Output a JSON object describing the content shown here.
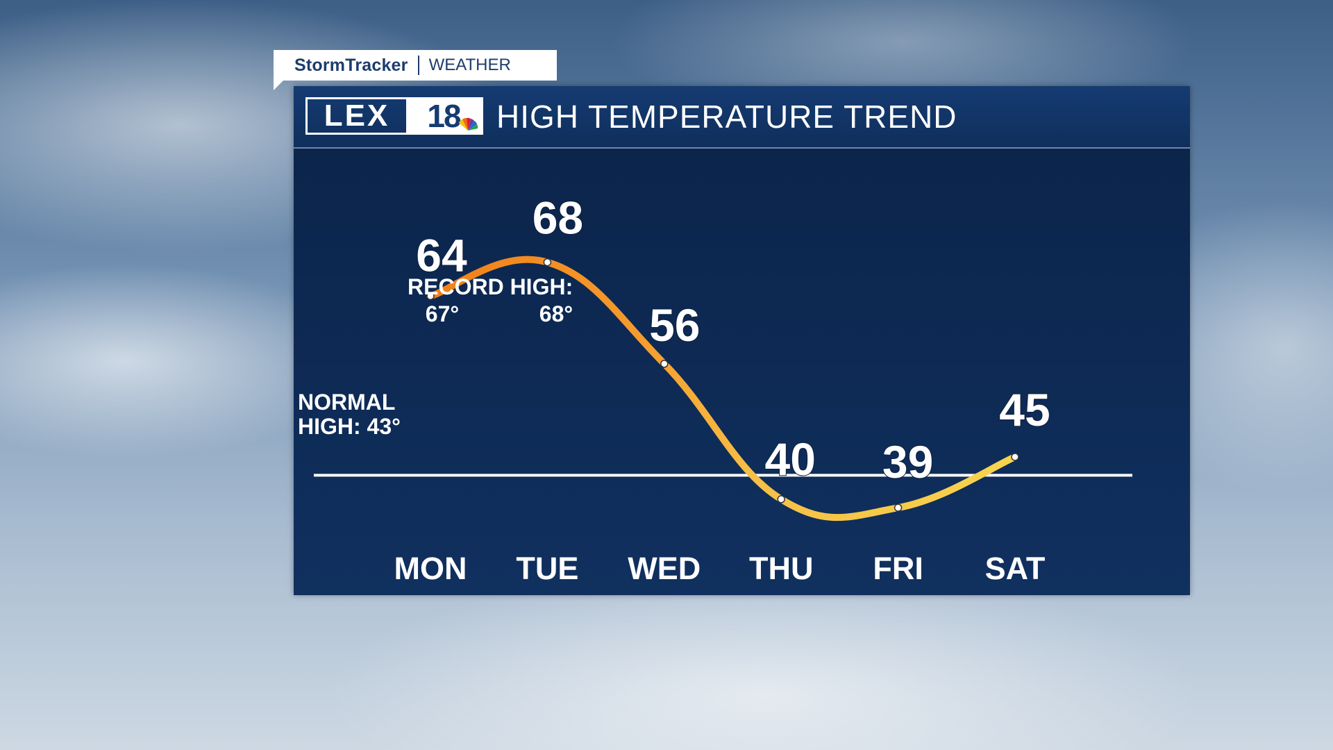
{
  "branding": {
    "show_name": "StormTracker",
    "show_sub": "WEATHER",
    "logo_letters": "LEX",
    "logo_number": "18"
  },
  "header": {
    "title": "HIGH TEMPERATURE TREND"
  },
  "colors": {
    "panel": "#0f2d5a",
    "line_hot": "#f08a1f",
    "line_cool": "#f5d44a",
    "normal_line": "#ffffff"
  },
  "annotations": {
    "record_label": "RECORD HIGH:",
    "record_mon": "67°",
    "record_tue": "68°",
    "normal_label_1": "NORMAL",
    "normal_label_2": "HIGH: 43°"
  },
  "chart_data": {
    "type": "line",
    "title": "HIGH TEMPERATURE TREND",
    "categories": [
      "MON",
      "TUE",
      "WED",
      "THU",
      "FRI",
      "SAT"
    ],
    "series": [
      {
        "values": [
          64,
          68,
          56,
          40,
          39,
          45
        ]
      }
    ],
    "data_labels": [
      "64",
      "68",
      "56",
      "40",
      "39",
      "45"
    ],
    "reference_line": {
      "label": "NORMAL HIGH: 43°",
      "value": 43
    },
    "record_highs": {
      "MON": 67,
      "TUE": 68
    },
    "grid": false,
    "ylim": [
      30,
      75
    ]
  }
}
